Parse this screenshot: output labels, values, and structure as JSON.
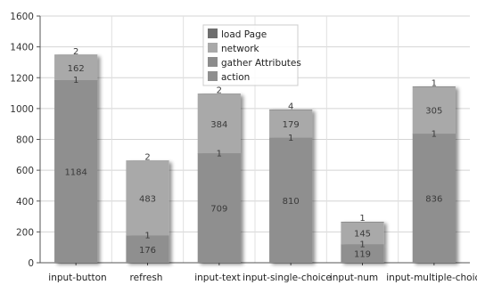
{
  "chart_data": {
    "type": "bar",
    "stacked": true,
    "title": "",
    "xlabel": "",
    "ylabel": "",
    "ylim": [
      0,
      1600
    ],
    "yticks": [
      0,
      200,
      400,
      600,
      800,
      1000,
      1200,
      1400,
      1600
    ],
    "grid": true,
    "legend_position": "top-center",
    "categories": [
      "input-button",
      "refresh",
      "input-text",
      "input-single-choice",
      "input-numinput-multiple-choice",
      ""
    ],
    "category_labels": [
      "input-button",
      "refresh",
      "input-text",
      "input-single-choice",
      "input-num",
      "input-multiple-choice"
    ],
    "series": [
      {
        "name": "load Page",
        "color": "#6e6e6e",
        "values": [
          null,
          null,
          null,
          null,
          null,
          null
        ]
      },
      {
        "name": "network",
        "color": "#a9a9a9",
        "values": [
          162,
          483,
          384,
          179,
          145,
          305
        ]
      },
      {
        "name": "gather Attributes",
        "color": "#8c8c8c",
        "values": [
          1,
          1,
          1,
          1,
          1,
          1
        ]
      },
      {
        "name": "action",
        "color": "#8f8f8f",
        "values": [
          1184,
          176,
          709,
          810,
          119,
          836
        ]
      }
    ],
    "top_values": [
      2,
      2,
      2,
      4,
      1,
      1
    ]
  }
}
